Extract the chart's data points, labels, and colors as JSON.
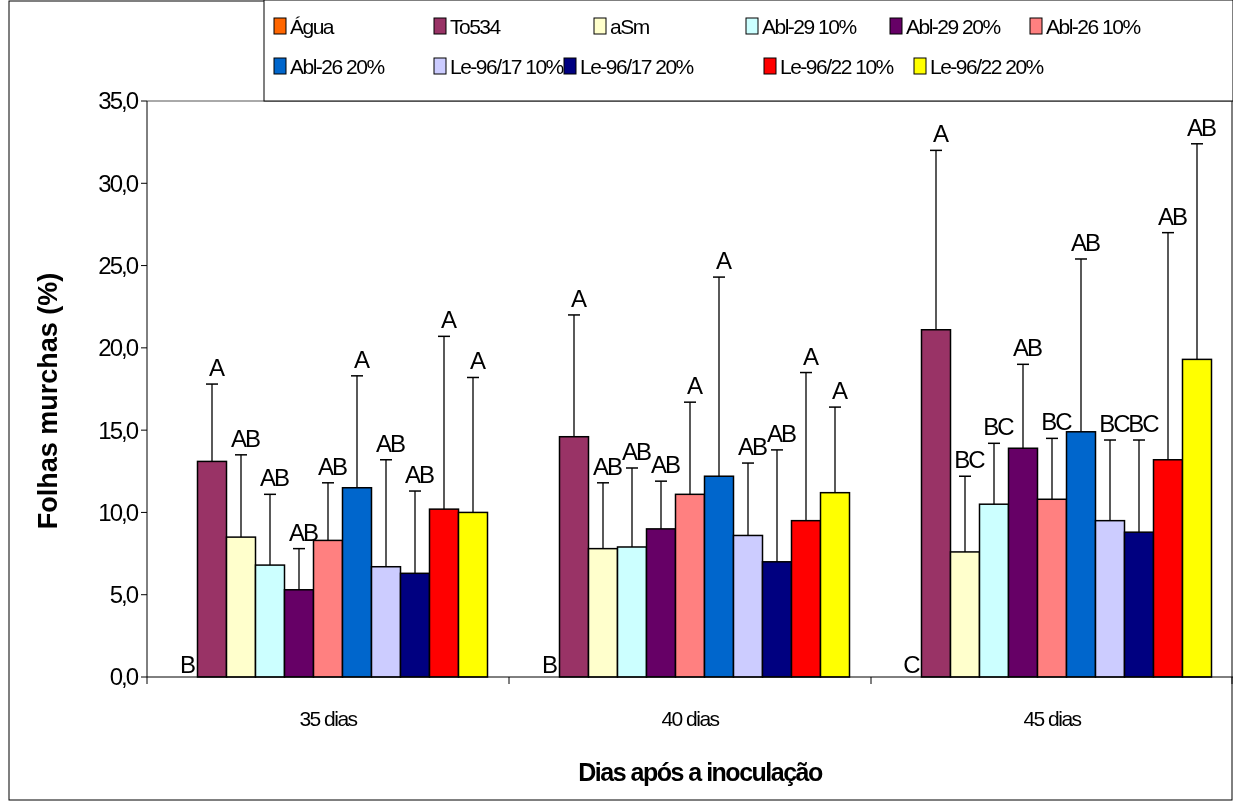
{
  "chart_data": {
    "type": "bar",
    "xlabel": "Dias após a inoculação",
    "ylabel": "Folhas murchas (%)",
    "categories": [
      "35 dias",
      "40 dias",
      "45 dias"
    ],
    "ylim": [
      0,
      35
    ],
    "yticks": [
      {
        "value": 0,
        "label": "0,0"
      },
      {
        "value": 5,
        "label": "5,0"
      },
      {
        "value": 10,
        "label": "10,0"
      },
      {
        "value": 15,
        "label": "15,0"
      },
      {
        "value": 20,
        "label": "20,0"
      },
      {
        "value": 25,
        "label": "25,0"
      },
      {
        "value": 30,
        "label": "30,0"
      },
      {
        "value": 35,
        "label": "35,0"
      }
    ],
    "legend": "top",
    "grid": false,
    "annotations": [
      "B",
      "B",
      "C",
      "A",
      "A",
      "A",
      "AB",
      "AB",
      "BC",
      "AB",
      "AB",
      "BC",
      "AB",
      "AB",
      "AB",
      "AB",
      "A",
      "BC",
      "A",
      "A",
      "AB",
      "AB",
      "AB",
      "BC",
      "AB",
      "AB",
      "BC",
      "A",
      "A",
      "AB",
      "A",
      "A",
      "AB"
    ],
    "series": [
      {
        "name": "Água",
        "color": "#ff6600",
        "values": [
          0,
          0,
          0
        ]
      },
      {
        "name": "To534",
        "color": "#993366",
        "values": [
          13.1,
          14.6,
          21.1
        ],
        "errors": [
          [
            13.1,
            17.8
          ],
          [
            14.6,
            22.0
          ],
          [
            21.1,
            32.0
          ]
        ]
      },
      {
        "name": "aSm",
        "color": "#ffffcc",
        "values": [
          8.5,
          7.8,
          7.6
        ],
        "errors": [
          [
            8.5,
            13.5
          ],
          [
            7.8,
            11.8
          ],
          [
            7.6,
            12.2
          ]
        ]
      },
      {
        "name": "Abl-29 10%",
        "color": "#ccffff",
        "values": [
          6.8,
          7.9,
          10.5
        ],
        "errors": [
          [
            6.8,
            11.1
          ],
          [
            7.9,
            12.7
          ],
          [
            10.5,
            14.2
          ]
        ]
      },
      {
        "name": "Abl-29 20%",
        "color": "#660066",
        "values": [
          5.3,
          9.0,
          13.9
        ],
        "errors": [
          [
            5.3,
            7.8
          ],
          [
            9.0,
            11.9
          ],
          [
            13.9,
            19.0
          ]
        ]
      },
      {
        "name": "Abl-26 10%",
        "color": "#ff8080",
        "values": [
          8.3,
          11.1,
          10.8
        ],
        "errors": [
          [
            8.3,
            11.8
          ],
          [
            11.1,
            16.7
          ],
          [
            10.8,
            14.5
          ]
        ]
      },
      {
        "name": "Abl-26 20%",
        "color": "#0066cc",
        "values": [
          11.5,
          12.2,
          14.9
        ],
        "errors": [
          [
            11.5,
            18.3
          ],
          [
            12.2,
            24.3
          ],
          [
            14.9,
            25.4
          ]
        ]
      },
      {
        "name": "Le-96/17 10%",
        "color": "#ccccff",
        "values": [
          6.7,
          8.6,
          9.5
        ],
        "errors": [
          [
            6.7,
            13.2
          ],
          [
            8.6,
            13.0
          ],
          [
            9.5,
            14.4
          ]
        ]
      },
      {
        "name": "Le-96/17 20%",
        "color": "#000080",
        "values": [
          6.3,
          7.0,
          8.8
        ],
        "errors": [
          [
            6.3,
            11.3
          ],
          [
            7.0,
            13.8
          ],
          [
            8.8,
            14.4
          ]
        ]
      },
      {
        "name": "Le-96/22 10%",
        "color": "#ff0000",
        "values": [
          10.2,
          9.5,
          13.2
        ],
        "errors": [
          [
            10.2,
            20.7
          ],
          [
            9.5,
            18.5
          ],
          [
            13.2,
            27.0
          ]
        ]
      },
      {
        "name": "Le-96/22 20%",
        "color": "#ffff00",
        "values": [
          10.0,
          11.2,
          19.3
        ],
        "errors": [
          [
            10.0,
            18.2
          ],
          [
            11.2,
            16.4
          ],
          [
            19.3,
            32.4
          ]
        ]
      }
    ]
  }
}
